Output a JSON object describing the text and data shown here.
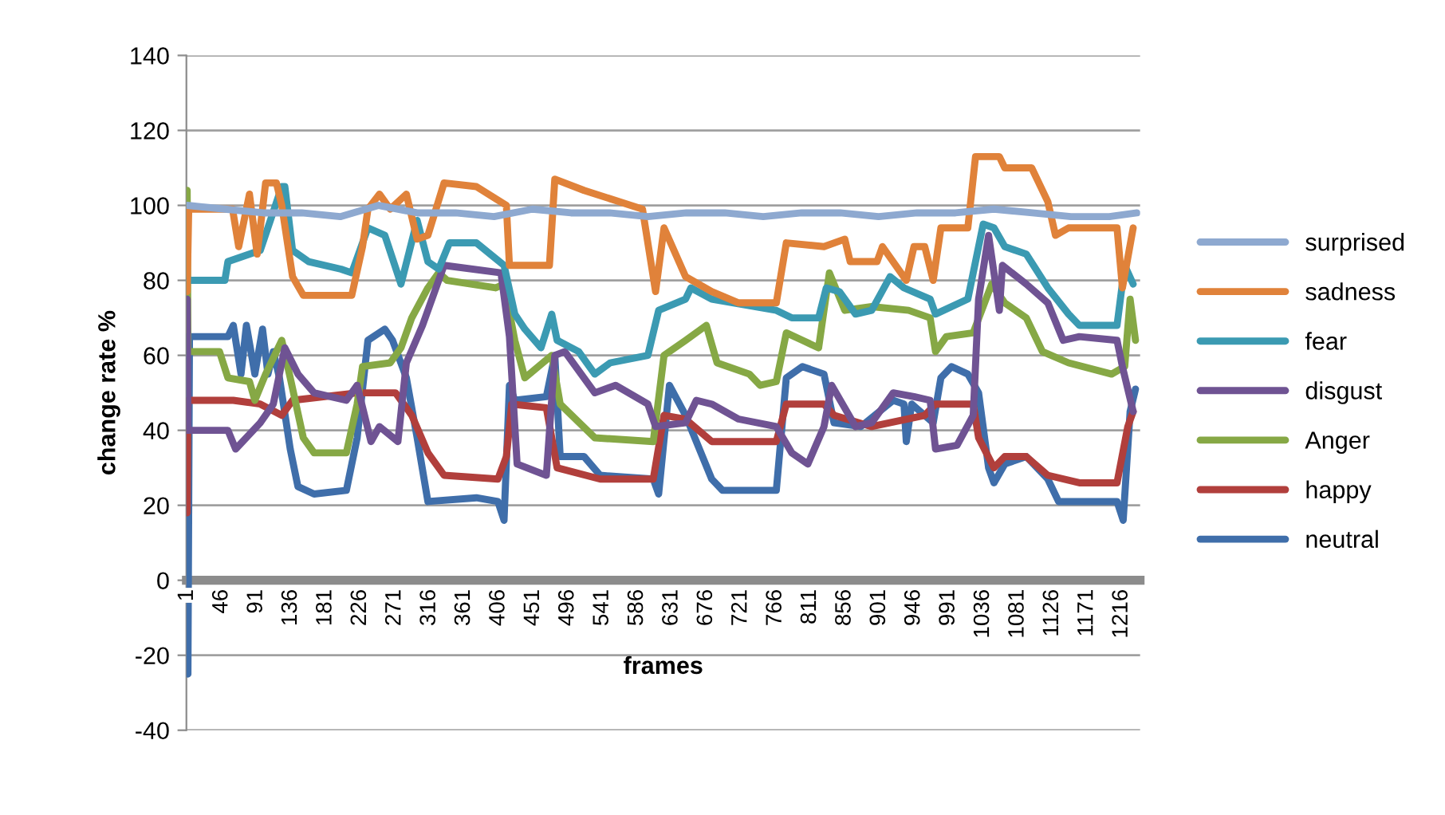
{
  "chart_data": {
    "type": "line",
    "xlabel": "frames",
    "ylabel": "change rate %",
    "xlim": [
      0,
      1240
    ],
    "xticks": [
      1,
      46,
      91,
      136,
      181,
      226,
      271,
      316,
      361,
      406,
      451,
      496,
      541,
      586,
      631,
      676,
      721,
      766,
      811,
      856,
      901,
      946,
      991,
      1036,
      1081,
      1126,
      1171,
      1216
    ],
    "ylim": [
      -40,
      140
    ],
    "yticks": [
      -40,
      -20,
      0,
      20,
      40,
      60,
      80,
      100,
      120,
      140
    ],
    "grid": "y",
    "legend": "right",
    "marker": "none",
    "line_style": "solid",
    "series": [
      {
        "name": "surprised",
        "color": "#8ea9d0",
        "x": [
          1,
          50,
          100,
          150,
          200,
          250,
          300,
          350,
          400,
          450,
          500,
          550,
          600,
          650,
          700,
          750,
          800,
          850,
          900,
          950,
          1000,
          1050,
          1100,
          1150,
          1200,
          1236
        ],
        "values": [
          100,
          99,
          98,
          98,
          97,
          100,
          98,
          98,
          97,
          99,
          98,
          98,
          97,
          98,
          98,
          97,
          98,
          98,
          97,
          98,
          98,
          99,
          98,
          97,
          97,
          98
        ]
      },
      {
        "name": "sadness",
        "color": "#e0823a",
        "x": [
          1,
          3,
          60,
          68,
          82,
          92,
          103,
          117,
          124,
          138,
          152,
          215,
          229,
          236,
          251,
          265,
          286,
          300,
          314,
          335,
          377,
          416,
          420,
          472,
          479,
          517,
          593,
          610,
          621,
          649,
          683,
          718,
          767,
          780,
          829,
          856,
          863,
          898,
          905,
          936,
          946,
          960,
          971,
          981,
          1016,
          1026,
          1036,
          1057,
          1064,
          1099,
          1120,
          1130,
          1147,
          1210,
          1217,
          1231
        ],
        "values": [
          77,
          99,
          99,
          89,
          103,
          87,
          106,
          106,
          100,
          81,
          76,
          76,
          89,
          99,
          103,
          99,
          103,
          91,
          92,
          106,
          105,
          100,
          84,
          84,
          107,
          104,
          99,
          77,
          94,
          81,
          77,
          74,
          74,
          90,
          89,
          91,
          85,
          85,
          89,
          80,
          89,
          89,
          80,
          94,
          94,
          113,
          113,
          113,
          110,
          110,
          101,
          92,
          94,
          94,
          78,
          94
        ]
      },
      {
        "name": "fear",
        "color": "#3b9ab2",
        "x": [
          1,
          50,
          54,
          96,
          124,
          128,
          138,
          159,
          201,
          215,
          236,
          258,
          279,
          300,
          314,
          328,
          342,
          377,
          413,
          427,
          440,
          461,
          475,
          482,
          510,
          531,
          551,
          600,
          614,
          649,
          656,
          683,
          767,
          787,
          822,
          832,
          849,
          870,
          891,
          915,
          933,
          967,
          974,
          1016,
          1036,
          1050,
          1064,
          1092,
          1120,
          1147,
          1161,
          1210,
          1220,
          1231
        ],
        "values": [
          80,
          80,
          85,
          88,
          105,
          105,
          88,
          85,
          83,
          82,
          94,
          92,
          79,
          96,
          85,
          83,
          90,
          90,
          84,
          71,
          67,
          62,
          71,
          64,
          61,
          55,
          58,
          60,
          72,
          75,
          78,
          75,
          72,
          70,
          70,
          78,
          77,
          71,
          72,
          81,
          78,
          75,
          71,
          75,
          95,
          94,
          89,
          87,
          78,
          71,
          68,
          68,
          84,
          79
        ]
      },
      {
        "name": "disgust",
        "color": "#6f5393",
        "x": [
          1,
          2,
          54,
          64,
          96,
          113,
          128,
          145,
          166,
          208,
          222,
          240,
          251,
          275,
          286,
          307,
          335,
          409,
          420,
          430,
          468,
          479,
          492,
          531,
          558,
          600,
          610,
          649,
          663,
          683,
          718,
          767,
          787,
          808,
          829,
          839,
          870,
          891,
          919,
          946,
          967,
          974,
          1002,
          1023,
          1030,
          1043,
          1057,
          1061,
          1092,
          1120,
          1140,
          1161,
          1210,
          1217,
          1231
        ],
        "values": [
          75,
          40,
          40,
          35,
          42,
          47,
          62,
          55,
          50,
          48,
          52,
          37,
          41,
          37,
          58,
          68,
          84,
          82,
          65,
          31,
          28,
          60,
          61,
          50,
          52,
          47,
          41,
          42,
          48,
          47,
          43,
          41,
          34,
          31,
          41,
          52,
          41,
          42,
          50,
          49,
          48,
          35,
          36,
          44,
          75,
          92,
          72,
          84,
          79,
          74,
          64,
          65,
          64,
          57,
          45
        ]
      },
      {
        "name": "Anger",
        "color": "#86a845",
        "x": [
          1,
          2,
          43,
          54,
          82,
          89,
          103,
          124,
          135,
          152,
          166,
          208,
          222,
          229,
          265,
          279,
          293,
          314,
          328,
          339,
          402,
          413,
          427,
          440,
          475,
          486,
          531,
          607,
          621,
          649,
          676,
          690,
          732,
          746,
          767,
          780,
          801,
          822,
          836,
          856,
          891,
          939,
          967,
          974,
          988,
          1023,
          1047,
          1064,
          1092,
          1113,
          1147,
          1203,
          1220,
          1227,
          1234
        ],
        "values": [
          104,
          61,
          61,
          54,
          53,
          48,
          55,
          64,
          54,
          38,
          34,
          34,
          47,
          57,
          58,
          62,
          70,
          78,
          82,
          80,
          78,
          79,
          64,
          54,
          60,
          47,
          38,
          37,
          60,
          64,
          68,
          58,
          55,
          52,
          53,
          66,
          64,
          62,
          82,
          72,
          73,
          72,
          70,
          61,
          65,
          66,
          79,
          74,
          70,
          61,
          58,
          55,
          57,
          75,
          64
        ]
      },
      {
        "name": "happy",
        "color": "#b13f3c",
        "x": [
          1,
          2,
          61,
          96,
          124,
          138,
          222,
          272,
          293,
          314,
          335,
          405,
          416,
          423,
          468,
          482,
          538,
          607,
          621,
          649,
          683,
          767,
          780,
          829,
          842,
          891,
          960,
          974,
          1023,
          1030,
          1050,
          1064,
          1092,
          1120,
          1161,
          1210,
          1224,
          1231
        ],
        "values": [
          18,
          48,
          48,
          47,
          44,
          48,
          50,
          50,
          44,
          34,
          28,
          27,
          33,
          47,
          46,
          30,
          27,
          27,
          44,
          43,
          37,
          37,
          47,
          47,
          44,
          41,
          44,
          47,
          47,
          38,
          30,
          33,
          33,
          28,
          26,
          26,
          41,
          45
        ]
      },
      {
        "name": "neutral",
        "color": "#3f6eaa",
        "x": [
          1,
          2,
          4,
          54,
          61,
          71,
          78,
          89,
          99,
          106,
          113,
          121,
          135,
          145,
          166,
          208,
          222,
          236,
          258,
          268,
          286,
          300,
          314,
          377,
          405,
          413,
          420,
          427,
          468,
          479,
          486,
          517,
          538,
          607,
          614,
          628,
          649,
          683,
          697,
          767,
          780,
          801,
          829,
          842,
          877,
          919,
          933,
          936,
          943,
          971,
          981,
          995,
          1016,
          1030,
          1043,
          1050,
          1064,
          1092,
          1120,
          1134,
          1210,
          1218,
          1227,
          1234
        ],
        "values": [
          65,
          -25,
          65,
          65,
          68,
          55,
          68,
          55,
          67,
          55,
          61,
          54,
          35,
          25,
          23,
          24,
          38,
          64,
          67,
          64,
          54,
          38,
          21,
          22,
          21,
          16,
          52,
          48,
          49,
          60,
          33,
          33,
          28,
          27,
          23,
          52,
          44,
          27,
          24,
          24,
          54,
          57,
          55,
          42,
          41,
          48,
          47,
          37,
          47,
          42,
          54,
          57,
          55,
          50,
          30,
          26,
          31,
          33,
          27,
          21,
          21,
          16,
          45,
          51
        ]
      }
    ]
  }
}
